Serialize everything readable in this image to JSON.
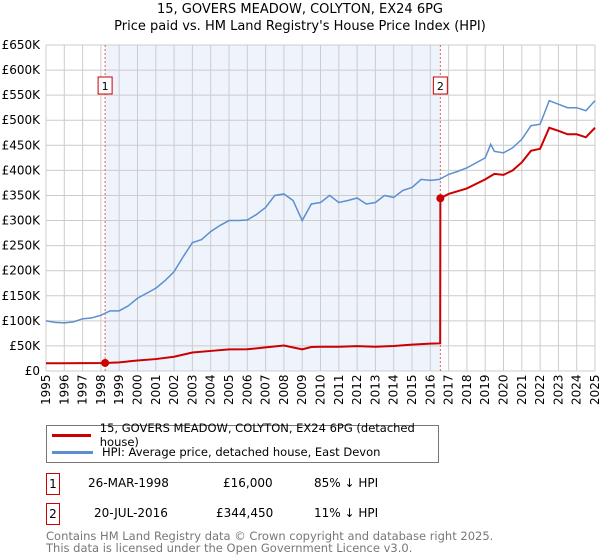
{
  "header": {
    "title": "15, GOVERS MEADOW, COLYTON, EX24 6PG",
    "subtitle": "Price paid vs. HM Land Registry's House Price Index (HPI)"
  },
  "chart_data": {
    "type": "line",
    "title": "15, GOVERS MEADOW, COLYTON, EX24 6PG",
    "subtitle": "Price paid vs. HM Land Registry's House Price Index (HPI)",
    "xlim": [
      1995,
      2025
    ],
    "ylim": [
      0,
      650000
    ],
    "x_ticks": [
      "1995",
      "1996",
      "1997",
      "1998",
      "1999",
      "2000",
      "2001",
      "2002",
      "2003",
      "2004",
      "2005",
      "2006",
      "2007",
      "2008",
      "2009",
      "2010",
      "2011",
      "2012",
      "2013",
      "2014",
      "2015",
      "2016",
      "2017",
      "2018",
      "2019",
      "2020",
      "2021",
      "2022",
      "2023",
      "2024",
      "2025"
    ],
    "y_ticks": [
      "£0",
      "£50K",
      "£100K",
      "£150K",
      "£200K",
      "£250K",
      "£300K",
      "£350K",
      "£400K",
      "£450K",
      "£500K",
      "£550K",
      "£600K",
      "£650K"
    ],
    "grid": true,
    "series": [
      {
        "name": "15, GOVERS MEADOW, COLYTON, EX24 6PG (detached house)",
        "color": "#cc0000",
        "x": [
          1995,
          1996,
          1997,
          1998.23,
          1999,
          2000,
          2001,
          2002,
          2003,
          2004,
          2005,
          2006,
          2007,
          2008,
          2009,
          2009.5,
          2010,
          2011,
          2012,
          2013,
          2014,
          2015,
          2016,
          2016.54,
          2016.55,
          2017,
          2018,
          2019,
          2019.5,
          2020,
          2020.5,
          2021,
          2021.5,
          2022,
          2022.5,
          2023,
          2023.5,
          2024,
          2024.5,
          2025
        ],
        "y": [
          15500,
          15500,
          15800,
          16000,
          17300,
          20900,
          23800,
          28500,
          36900,
          40000,
          43200,
          43400,
          47000,
          50900,
          43200,
          47900,
          48400,
          48400,
          49700,
          48400,
          49800,
          52700,
          54700,
          55200,
          344450,
          353000,
          364000,
          382000,
          393000,
          391000,
          400000,
          416000,
          439000,
          443000,
          485000,
          479000,
          472000,
          472000,
          466000,
          485000
        ]
      },
      {
        "name": "HPI: Average price, detached house, East Devon",
        "color": "#5b8fd0",
        "x": [
          1995,
          1995.5,
          1996,
          1996.5,
          1997,
          1997.5,
          1998,
          1998.5,
          1999,
          1999.5,
          2000,
          2000.5,
          2001,
          2001.5,
          2002,
          2002.5,
          2003,
          2003.5,
          2004,
          2004.5,
          2005,
          2005.5,
          2006,
          2006.5,
          2007,
          2007.5,
          2008,
          2008.5,
          2009,
          2009.5,
          2010,
          2010.5,
          2011,
          2011.5,
          2012,
          2012.5,
          2013,
          2013.5,
          2014,
          2014.5,
          2015,
          2015.5,
          2016,
          2016.5,
          2017,
          2017.5,
          2018,
          2018.5,
          2019,
          2019.3,
          2019.5,
          2020,
          2020.5,
          2021,
          2021.5,
          2022,
          2022.5,
          2023,
          2023.5,
          2024,
          2024.5,
          2025
        ],
        "y": [
          100000,
          97000,
          96000,
          98000,
          104000,
          106000,
          111000,
          120000,
          120000,
          130000,
          145000,
          155000,
          165000,
          180000,
          198000,
          228000,
          256000,
          262000,
          278000,
          290000,
          300000,
          300000,
          301000,
          312000,
          326000,
          350000,
          353000,
          340000,
          300000,
          333000,
          336000,
          350000,
          336000,
          340000,
          345000,
          333000,
          336000,
          350000,
          346000,
          360000,
          366000,
          382000,
          380000,
          382000,
          392000,
          398000,
          405000,
          415000,
          425000,
          452000,
          438000,
          435000,
          445000,
          462000,
          489000,
          492000,
          539000,
          532000,
          525000,
          525000,
          519000,
          539000
        ]
      }
    ],
    "annotations": [
      {
        "label": "1",
        "x": 1998.23,
        "y": 16000
      },
      {
        "label": "2",
        "x": 2016.55,
        "y": 344450
      }
    ],
    "shaded_range": [
      1998.23,
      2016.55
    ],
    "legend_placement": "below"
  },
  "legend": {
    "items": [
      {
        "label": "15, GOVERS MEADOW, COLYTON, EX24 6PG (detached house)",
        "color": "#cc0000"
      },
      {
        "label": "HPI: Average price, detached house, East Devon",
        "color": "#5b8fd0"
      }
    ]
  },
  "transactions": [
    {
      "num": "1",
      "date": "26-MAR-1998",
      "price": "£16,000",
      "hpi": "85% ↓ HPI"
    },
    {
      "num": "2",
      "date": "20-JUL-2016",
      "price": "£344,450",
      "hpi": "11% ↓ HPI"
    }
  ],
  "footer": {
    "line1": "Contains HM Land Registry data © Crown copyright and database right 2025.",
    "line2": "This data is licensed under the Open Government Licence v3.0."
  }
}
